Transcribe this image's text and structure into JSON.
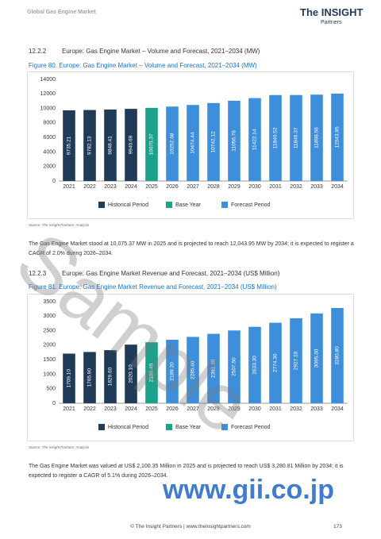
{
  "header": {
    "title": "Global Gas Engine Market",
    "logo": "The INSIGHT",
    "logo_sub": "Partners"
  },
  "sections": [
    {
      "number": "12.2.2",
      "heading": "Europe: Gas Engine Market – Volume and Forecast, 2021–2034 (MW)",
      "figure": "Figure 80.   Europe: Gas Engine Market – Volume and Forecast, 2021–2034 (MW)",
      "source": "Source: The Insight Partners' Analysis",
      "paragraph": "The Gas Engine Market stood at 10,075.37 MW in 2025 and is projected to reach 12,043.95 MW by 2034; it is expected to register a CAGR of 2.0% during 2026–2034."
    },
    {
      "number": "12.2.3",
      "heading": "Europe: Gas Engine Market Revenue and Forecast, 2021–2034 (US$ Million)",
      "figure": "Figure 81.   Europe: Gas Engine Market Revenue and Forecast, 2021–2034 (US$ Million)",
      "source": "Source: The Insight Partners' Analysis",
      "paragraph": "The Gas Engine Market was valued at US$ 2,100.35 Million in 2025 and is projected to reach US$ 3,280.81 Million by 2034; it is expected to register a CAGR of 5.1% during 2026–2034."
    }
  ],
  "chart_data": [
    {
      "type": "bar",
      "categories": [
        "2021",
        "2022",
        "2023",
        "2024",
        "2025",
        "2026",
        "2027",
        "2028",
        "2029",
        "2030",
        "2031",
        "2032",
        "2033",
        "2034"
      ],
      "ylim": [
        0,
        14000
      ],
      "yticks": [
        0,
        2000,
        4000,
        6000,
        8000,
        10000,
        12000,
        14000
      ],
      "legend": "bottom",
      "series": [
        {
          "name": "Historical Period",
          "color": "#1f3b57",
          "values": [
            9735.21,
            9782.13,
            9848.41,
            9940.69,
            null,
            null,
            null,
            null,
            null,
            null,
            null,
            null,
            null,
            null
          ]
        },
        {
          "name": "Base Year",
          "color": "#1aa38a",
          "values": [
            null,
            null,
            null,
            null,
            10075.37,
            null,
            null,
            null,
            null,
            null,
            null,
            null,
            null,
            null
          ]
        },
        {
          "name": "Forecast Period",
          "color": "#3d8fdc",
          "values": [
            null,
            null,
            null,
            null,
            null,
            10252.68,
            10474.44,
            10742.12,
            11056.76,
            11422.14,
            11840.52,
            11846.37,
            11898.56,
            12043.95
          ]
        }
      ]
    },
    {
      "type": "bar",
      "categories": [
        "2021",
        "2022",
        "2023",
        "2024",
        "2025",
        "2026",
        "2027",
        "2028",
        "2029",
        "2030",
        "2031",
        "2032",
        "2033",
        "2034"
      ],
      "ylim": [
        0,
        3500
      ],
      "yticks": [
        0,
        500,
        1000,
        1500,
        2000,
        2500,
        3000,
        3500
      ],
      "legend": "bottom",
      "series": [
        {
          "name": "Historical Period",
          "color": "#1f3b57",
          "values": [
            1709.1,
            1765.9,
            1829.6,
            2020.1,
            null,
            null,
            null,
            null,
            null,
            null,
            null,
            null,
            null,
            null
          ],
          "value_labels": [
            "1709.10",
            "1765.90",
            "1829.60",
            "2020.10",
            null,
            null,
            null,
            null,
            null,
            null,
            null,
            null,
            null,
            null
          ]
        },
        {
          "name": "Base Year",
          "color": "#1aa38a",
          "values": [
            null,
            null,
            null,
            null,
            2100.4,
            null,
            null,
            null,
            null,
            null,
            null,
            null,
            null,
            null
          ],
          "value_labels": [
            null,
            null,
            null,
            null,
            "2100.40",
            null,
            null,
            null,
            null,
            null,
            null,
            null,
            null,
            null
          ]
        },
        {
          "name": "Forecast Period",
          "color": "#3d8fdc",
          "values": [
            null,
            null,
            null,
            null,
            null,
            2189.2,
            2285.6,
            2391.3,
            2507.5,
            2633.3,
            2774.3,
            2927.1,
            3095.3,
            3280.8
          ],
          "value_labels": [
            null,
            null,
            null,
            null,
            null,
            "2189.20",
            "2285.60",
            "2391.30",
            "2507.50",
            "2633.30",
            "2774.30",
            "2927.10",
            "3095.30",
            "3280.80"
          ]
        }
      ]
    }
  ],
  "footer": {
    "text": "© The Insight Partners   |   www.theinsightpartners.com",
    "page": "173"
  },
  "watermarks": [
    "Sample",
    "www.gii.co.jp"
  ]
}
